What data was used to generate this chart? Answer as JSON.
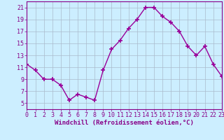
{
  "x": [
    0,
    1,
    2,
    3,
    4,
    5,
    6,
    7,
    8,
    9,
    10,
    11,
    12,
    13,
    14,
    15,
    16,
    17,
    18,
    19,
    20,
    21,
    22,
    23
  ],
  "y": [
    11.5,
    10.5,
    9.0,
    9.0,
    8.0,
    5.5,
    6.5,
    6.0,
    5.5,
    10.5,
    14.0,
    15.5,
    17.5,
    19.0,
    21.0,
    21.0,
    19.5,
    18.5,
    17.0,
    14.5,
    13.0,
    14.5,
    11.5,
    9.5
  ],
  "line_color": "#990099",
  "marker": "+",
  "markersize": 4,
  "linewidth": 1.0,
  "xlim": [
    0,
    23
  ],
  "ylim": [
    4,
    22
  ],
  "yticks": [
    5,
    7,
    9,
    11,
    13,
    15,
    17,
    19,
    21
  ],
  "xticks": [
    0,
    1,
    2,
    3,
    4,
    5,
    6,
    7,
    8,
    9,
    10,
    11,
    12,
    13,
    14,
    15,
    16,
    17,
    18,
    19,
    20,
    21,
    22,
    23
  ],
  "xlabel": "Windchill (Refroidissement éolien,°C)",
  "xlabel_fontsize": 6.5,
  "tick_fontsize": 6,
  "tick_color": "#880088",
  "background_color": "#cceeff",
  "grid_color": "#aabbcc",
  "grid_linewidth": 0.5
}
